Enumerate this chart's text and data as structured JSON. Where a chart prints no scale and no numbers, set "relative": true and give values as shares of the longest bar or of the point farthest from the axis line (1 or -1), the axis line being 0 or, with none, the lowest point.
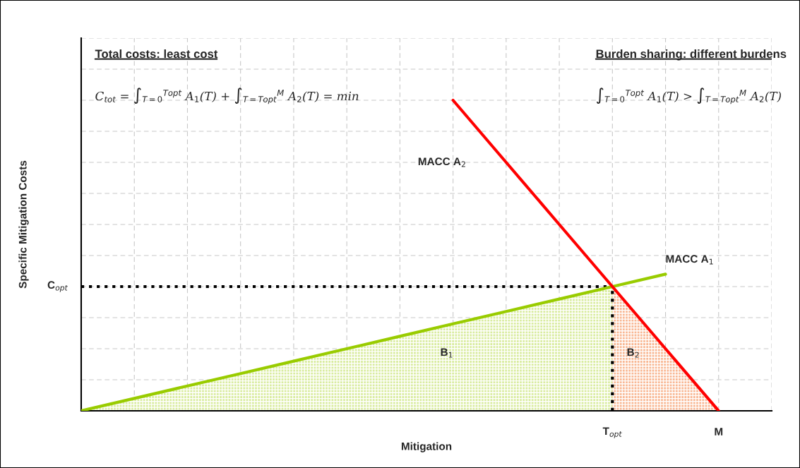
{
  "chart_data": {
    "type": "line",
    "relative": true,
    "xlabel": "Mitigation",
    "ylabel": "Specific Mitigation Costs",
    "categories": [
      null,
      null,
      null,
      null,
      null,
      null,
      null,
      null,
      null,
      null,
      "T$_{opt}$",
      null,
      "M"
    ],
    "series": [
      {
        "type": "area",
        "color": "#d9ec9f",
        "values": [
          0,
          0.04,
          0.08,
          0.12,
          0.16,
          0.2,
          0.24,
          0.28,
          0.32,
          0.36,
          0.4,
          null,
          null
        ]
      },
      {
        "type": "area",
        "color": "#f9b894",
        "values": [
          null,
          null,
          null,
          null,
          null,
          null,
          null,
          null,
          null,
          null,
          0.4,
          0.2,
          0
        ]
      },
      {
        "name": "MACC A$_{1}$",
        "color": "#99cc00",
        "values": [
          0,
          0.04,
          0.08,
          0.12,
          0.16,
          0.2,
          0.24,
          0.28,
          0.32,
          0.36,
          0.4,
          0.44,
          null
        ]
      },
      {
        "name": "MACC A$_{2}$",
        "color": "#ff0000",
        "values": [
          null,
          null,
          null,
          null,
          null,
          null,
          null,
          1.0,
          0.8,
          0.6,
          0.4,
          0.2,
          0
        ]
      }
    ],
    "ref_lines": [
      {
        "axis": "y",
        "value": 0.4,
        "label": "C$_{opt}$",
        "color": "#000000",
        "line_style": "dotted"
      },
      {
        "axis": "x",
        "value": "T$_{opt}$",
        "color": "#000000",
        "line_style": "dotted"
      }
    ],
    "annotations": [
      "Total costs: least cost",
      "C$_{tot}$ = ∫$_{T=0}$$^{Topt}$ A$_{1}$(T) + ∫$_{T=Topt}$$^{M}$ A$_{2}$(T) = min",
      "Burden sharing: different burdens",
      "∫$_{T=0}$$^{Topt}$ A$_{1}$(T) > ∫$_{T=Topt}$$^{M}$ A$_{2}$(T)",
      "B$_{1}$",
      "B$_{2}$"
    ],
    "grid": true,
    "legend": false,
    "marker": "none",
    "line_style": "solid"
  }
}
